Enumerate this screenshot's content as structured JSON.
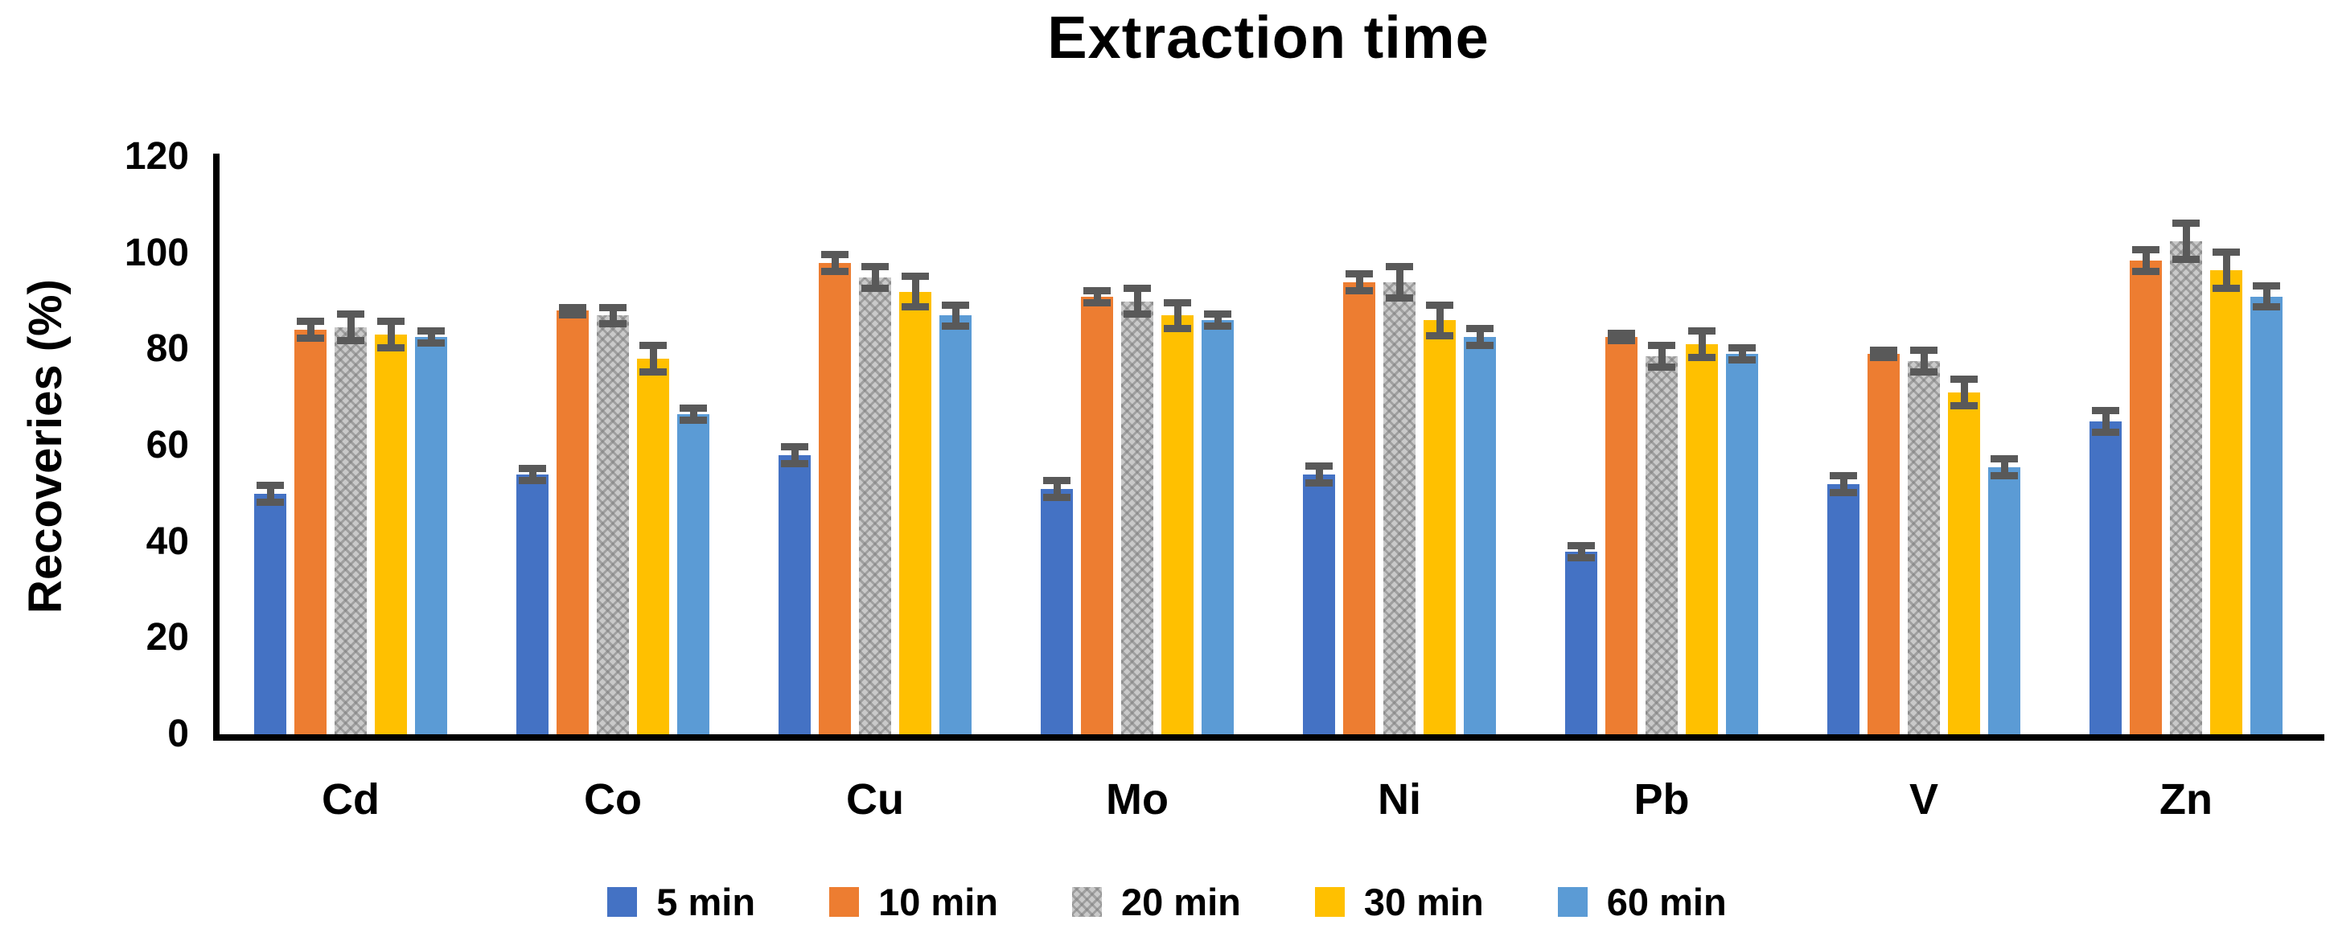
{
  "chart_data": {
    "type": "bar",
    "title": "Extraction time",
    "xlabel": "",
    "ylabel": "Recoveries (%)",
    "categories": [
      "Cd",
      "Co",
      "Cu",
      "Mo",
      "Ni",
      "Pb",
      "V",
      "Zn"
    ],
    "series": [
      {
        "name": "5 min",
        "color": "#4472C4",
        "pattern": false,
        "values": [
          50,
          54,
          58,
          51,
          54,
          38,
          52,
          65
        ],
        "errors": [
          2.5,
          2,
          2.5,
          2.5,
          2.5,
          2,
          2.5,
          3
        ]
      },
      {
        "name": "10 min",
        "color": "#ED7D31",
        "pattern": false,
        "values": [
          84,
          88,
          98,
          91,
          94,
          82.5,
          79,
          98.5
        ],
        "errors": [
          2.5,
          1.5,
          2.5,
          2,
          2.5,
          1.5,
          1.5,
          3
        ]
      },
      {
        "name": "20 min",
        "color": "#C9C9C9",
        "pattern": true,
        "values": [
          84.5,
          87,
          95,
          90,
          94,
          78.5,
          77.5,
          102.5
        ],
        "errors": [
          3.5,
          2.5,
          3,
          3.5,
          4,
          3,
          3,
          4.5
        ]
      },
      {
        "name": "30 min",
        "color": "#FFC000",
        "pattern": false,
        "values": [
          83,
          78,
          92,
          87,
          86,
          81,
          71,
          96.5
        ],
        "errors": [
          3.5,
          3.5,
          4,
          3.5,
          4,
          3.5,
          3.5,
          4.5
        ]
      },
      {
        "name": "60 min",
        "color": "#5B9BD5",
        "pattern": false,
        "values": [
          82.5,
          66.5,
          87,
          86,
          82.5,
          79,
          55.5,
          91
        ],
        "errors": [
          2,
          2,
          3,
          2,
          2.5,
          2,
          2.5,
          3
        ]
      }
    ],
    "yticks": [
      0,
      20,
      40,
      60,
      80,
      100,
      120
    ],
    "ylim": [
      0,
      120
    ],
    "grid": false,
    "legend_position": "bottom",
    "error_bar_color": "#595959",
    "axis_color": "#000000",
    "background_color": "#FFFFFF"
  }
}
